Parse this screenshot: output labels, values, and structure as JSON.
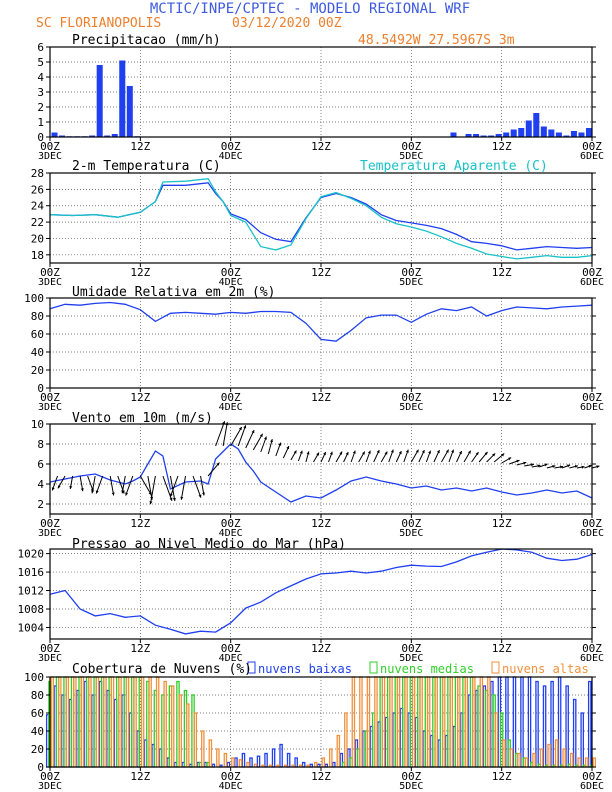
{
  "header": {
    "title": "MCTIC/INPE/CPTEC - MODELO REGIONAL WRF",
    "location": "SC FLORIANOPOLIS",
    "date": "03/12/2020 00Z",
    "coords": "48.5492W 27.5967S 3m"
  },
  "colors": {
    "blue": "#1f3ff0",
    "cyan": "#19c2c8",
    "green": "#2fcf27",
    "orange": "#f2913a",
    "title": "#3d5ae0",
    "subtitle": "#ee7f2d"
  },
  "x_axis": {
    "ticks": [
      0,
      12,
      24,
      36,
      48,
      60,
      72
    ],
    "tick_labels": [
      "00Z",
      "12Z",
      "00Z",
      "12Z",
      "00Z",
      "12Z",
      "00Z"
    ],
    "day_labels": [
      {
        "at": 0,
        "label": "3DEC"
      },
      {
        "at": 24,
        "label": "4DEC"
      },
      {
        "at": 48,
        "label": "5DEC"
      },
      {
        "at": 72,
        "label": "6DEC"
      }
    ],
    "range": [
      0,
      72
    ],
    "unit": "hours"
  },
  "chart_data": [
    {
      "id": "precip",
      "type": "bar",
      "title": "Precipitacao (mm/h)",
      "ylim": [
        0,
        6
      ],
      "yticks": [
        0,
        1,
        2,
        3,
        4,
        5,
        6
      ],
      "series": [
        {
          "color": "#1f3ff0",
          "x": [
            1,
            2,
            3,
            4,
            5,
            6,
            7,
            8,
            9,
            10,
            11,
            12,
            54,
            56,
            57,
            58,
            59,
            60,
            61,
            62,
            63,
            64,
            65,
            66,
            67,
            68,
            69,
            70,
            71,
            72
          ],
          "values": [
            0.3,
            0.1,
            0.05,
            0.05,
            0.05,
            0.1,
            4.8,
            0.1,
            0.2,
            5.1,
            3.4,
            0.05,
            0.3,
            0.2,
            0.2,
            0.1,
            0.1,
            0.2,
            0.3,
            0.5,
            0.6,
            1.1,
            1.6,
            0.7,
            0.5,
            0.3,
            0.1,
            0.4,
            0.3,
            0.6
          ]
        }
      ]
    },
    {
      "id": "temp",
      "type": "line",
      "title": "2-m Temperatura (C)",
      "legend_right": "Temperatura Aparente (C)",
      "ylim": [
        17,
        28
      ],
      "yticks": [
        18,
        20,
        22,
        24,
        26,
        28
      ],
      "series": [
        {
          "color": "#1f3ff0",
          "x": [
            0,
            3,
            6,
            9,
            12,
            14,
            15,
            18,
            21,
            22,
            23,
            24,
            26,
            28,
            30,
            32,
            34,
            36,
            38,
            40,
            42,
            44,
            46,
            48,
            50,
            52,
            54,
            56,
            58,
            60,
            62,
            64,
            66,
            68,
            70,
            72
          ],
          "values": [
            22.9,
            22.8,
            22.9,
            22.6,
            23.2,
            24.5,
            26.5,
            26.5,
            26.8,
            25.5,
            24.5,
            23.0,
            22.3,
            20.7,
            19.9,
            19.6,
            22.5,
            25.0,
            25.5,
            25.0,
            24.2,
            22.9,
            22.2,
            21.9,
            21.6,
            21.2,
            20.5,
            19.6,
            19.4,
            19.1,
            18.6,
            18.8,
            19.0,
            18.9,
            18.8,
            18.9
          ]
        },
        {
          "color": "#19c2c8",
          "x": [
            0,
            3,
            6,
            9,
            12,
            14,
            15,
            18,
            21,
            22,
            23,
            24,
            26,
            28,
            30,
            32,
            34,
            36,
            38,
            40,
            42,
            44,
            46,
            48,
            50,
            52,
            54,
            56,
            58,
            60,
            62,
            64,
            66,
            68,
            70,
            72
          ],
          "values": [
            22.9,
            22.8,
            22.9,
            22.6,
            23.2,
            24.5,
            26.9,
            27.0,
            27.3,
            25.7,
            24.5,
            22.8,
            22.0,
            19.0,
            18.6,
            19.2,
            22.4,
            25.1,
            25.6,
            24.9,
            24.0,
            22.6,
            21.8,
            21.4,
            20.9,
            20.2,
            19.4,
            18.8,
            18.1,
            17.8,
            17.5,
            17.7,
            17.9,
            17.7,
            17.7,
            17.9
          ]
        }
      ]
    },
    {
      "id": "humidity",
      "type": "line",
      "title": "Umidade Relativa em 2m (%)",
      "ylim": [
        0,
        100
      ],
      "yticks": [
        0,
        20,
        40,
        60,
        80,
        100
      ],
      "series": [
        {
          "color": "#1f3ff0",
          "x": [
            0,
            2,
            4,
            6,
            8,
            10,
            12,
            14,
            16,
            18,
            20,
            22,
            24,
            26,
            28,
            30,
            32,
            34,
            36,
            38,
            40,
            42,
            44,
            46,
            48,
            50,
            52,
            54,
            56,
            58,
            60,
            62,
            64,
            66,
            68,
            70,
            72
          ],
          "values": [
            88,
            93,
            92,
            94,
            95,
            93,
            87,
            74,
            83,
            84,
            83,
            82,
            84,
            83,
            85,
            85,
            84,
            72,
            54,
            52,
            64,
            78,
            81,
            81,
            73,
            82,
            88,
            86,
            90,
            80,
            86,
            90,
            89,
            88,
            90,
            91,
            92
          ]
        }
      ]
    },
    {
      "id": "wind",
      "type": "line",
      "title": "Vento em 10m (m/s)",
      "ylim": [
        1,
        10
      ],
      "yticks": [
        2,
        4,
        6,
        8,
        10
      ],
      "series": [
        {
          "color": "#1f3ff0",
          "x": [
            0,
            2,
            4,
            6,
            8,
            10,
            11,
            12,
            14,
            15,
            16,
            18,
            20,
            21,
            22,
            24,
            25,
            26,
            27,
            28,
            30,
            32,
            34,
            36,
            38,
            40,
            42,
            44,
            46,
            48,
            50,
            52,
            54,
            56,
            58,
            60,
            62,
            64,
            66,
            68,
            70,
            72
          ],
          "values": [
            4.2,
            4.5,
            4.8,
            5.0,
            4.4,
            4.0,
            4.3,
            4.7,
            7.3,
            6.8,
            3.5,
            4.2,
            4.3,
            4.0,
            6.5,
            8.0,
            7.5,
            6.2,
            5.3,
            4.2,
            3.2,
            2.2,
            2.8,
            2.6,
            3.4,
            4.3,
            4.7,
            4.3,
            4.0,
            3.6,
            3.8,
            3.4,
            3.6,
            3.3,
            3.6,
            3.2,
            2.9,
            3.1,
            3.4,
            3.1,
            3.3,
            2.6
          ]
        }
      ],
      "barbs": {
        "x": [
          1,
          2,
          3,
          4,
          5,
          6,
          7,
          8,
          9,
          10,
          11,
          12,
          13,
          14,
          15,
          16,
          17,
          18,
          19,
          20,
          21,
          22,
          23,
          24,
          25,
          26,
          27,
          28,
          29,
          30,
          31,
          32,
          33,
          34,
          35,
          36,
          37,
          38,
          39,
          40,
          41,
          42,
          43,
          44,
          45,
          46,
          47,
          48,
          49,
          50,
          51,
          52,
          53,
          54,
          55,
          56,
          57,
          58,
          59,
          60,
          61,
          62,
          63,
          64,
          65,
          66,
          67,
          68,
          69,
          70,
          71,
          72
        ],
        "base": [
          4.8,
          4.8,
          4.8,
          4.8,
          4.8,
          4.8,
          4.8,
          4.8,
          4.8,
          4.8,
          4.8,
          4.8,
          4.8,
          4.8,
          4.8,
          4.8,
          4.8,
          4.8,
          4.8,
          4.8,
          4.8,
          7.8,
          7.8,
          7.8,
          7.8,
          7.6,
          7.4,
          7.2,
          7.0,
          6.8,
          6.6,
          6.4,
          6.3,
          6.2,
          6.2,
          6.2,
          6.2,
          6.2,
          6.2,
          6.2,
          6.2,
          6.2,
          6.2,
          6.2,
          6.2,
          6.2,
          6.2,
          6.2,
          6.2,
          6.2,
          6.2,
          6.2,
          6.2,
          6.2,
          6.2,
          6.2,
          6.2,
          6.2,
          6.2,
          6.1,
          6.0,
          5.9,
          5.8,
          5.7,
          5.7,
          5.6,
          5.6,
          5.6,
          5.6,
          5.6,
          5.6,
          5.6
        ],
        "dir_deg": [
          200,
          210,
          190,
          170,
          160,
          190,
          200,
          170,
          160,
          190,
          200,
          150,
          170,
          190,
          160,
          170,
          200,
          190,
          160,
          170,
          40,
          20,
          10,
          30,
          20,
          25,
          30,
          20,
          15,
          20,
          25,
          30,
          20,
          15,
          30,
          25,
          20,
          30,
          25,
          20,
          30,
          20,
          25,
          30,
          20,
          25,
          20,
          30,
          25,
          20,
          25,
          30,
          20,
          25,
          30,
          35,
          40,
          45,
          50,
          60,
          70,
          75,
          80,
          80,
          70,
          75,
          80,
          70,
          75,
          80,
          70,
          75
        ],
        "len": [
          1.4,
          1.3,
          1.2,
          1.4,
          1.5,
          1.6,
          1.7,
          1.8,
          1.7,
          1.6,
          1.9,
          2.0,
          2.2,
          2.6,
          2.4,
          2.3,
          2.0,
          2.2,
          2.1,
          1.8,
          1.6,
          2.4,
          2.2,
          2.0,
          2.0,
          1.8,
          1.7,
          1.5,
          1.4,
          1.3,
          1.2,
          1.0,
          1.0,
          1.0,
          1.0,
          1.0,
          1.0,
          1.1,
          1.0,
          1.1,
          1.1,
          1.1,
          1.2,
          1.1,
          1.2,
          1.1,
          1.2,
          1.3,
          1.2,
          1.1,
          1.2,
          1.3,
          1.2,
          1.1,
          1.2,
          1.1,
          1.2,
          1.1,
          1.2,
          1.0,
          1.0,
          0.9,
          0.9,
          0.8,
          0.8,
          0.8,
          0.8,
          0.8,
          0.8,
          0.7,
          0.7,
          0.7
        ]
      }
    },
    {
      "id": "pressure",
      "type": "line",
      "title": "Pressao ao Nivel Medio do Mar (hPa)",
      "ylim": [
        1001.5,
        1021
      ],
      "yticks": [
        1004,
        1008,
        1012,
        1016,
        1020
      ],
      "series": [
        {
          "color": "#1f3ff0",
          "x": [
            0,
            2,
            4,
            6,
            8,
            10,
            12,
            14,
            16,
            18,
            20,
            22,
            24,
            26,
            28,
            30,
            32,
            34,
            36,
            38,
            40,
            42,
            44,
            46,
            48,
            50,
            52,
            54,
            56,
            58,
            60,
            62,
            64,
            66,
            68,
            70,
            72
          ],
          "values": [
            1011.2,
            1012,
            1008,
            1006.5,
            1007,
            1006.2,
            1006.5,
            1004.5,
            1003.6,
            1002.6,
            1003.2,
            1003,
            1005,
            1008.2,
            1009.5,
            1011.5,
            1013,
            1014.5,
            1015.6,
            1015.8,
            1016.2,
            1015.8,
            1016.2,
            1017,
            1017.5,
            1017.3,
            1017.2,
            1018.2,
            1019.5,
            1020.3,
            1021,
            1020.8,
            1020.3,
            1019,
            1018.5,
            1018.8,
            1019.8
          ]
        }
      ]
    },
    {
      "id": "clouds",
      "type": "bar",
      "title": "Cobertura de Nuvens (%)",
      "ylim": [
        0,
        100
      ],
      "yticks": [
        0,
        20,
        40,
        60,
        80,
        100
      ],
      "legend": [
        {
          "label": "nuvens baixas",
          "color": "#1f3ff0"
        },
        {
          "label": "nuvens medias",
          "color": "#2fcf27"
        },
        {
          "label": "nuvens altas",
          "color": "#f2913a"
        }
      ],
      "x": [
        0,
        1,
        2,
        3,
        4,
        5,
        6,
        7,
        8,
        9,
        10,
        11,
        12,
        13,
        14,
        15,
        16,
        17,
        18,
        19,
        20,
        21,
        22,
        23,
        24,
        25,
        26,
        27,
        28,
        29,
        30,
        31,
        32,
        33,
        34,
        35,
        36,
        37,
        38,
        39,
        40,
        41,
        42,
        43,
        44,
        45,
        46,
        47,
        48,
        49,
        50,
        51,
        52,
        53,
        54,
        55,
        56,
        57,
        58,
        59,
        60,
        61,
        62,
        63,
        64,
        65,
        66,
        67,
        68,
        69,
        70,
        71,
        72
      ],
      "series": [
        {
          "name": "nuvens baixas",
          "color": "#1f3ff0",
          "values": [
            58,
            90,
            80,
            75,
            85,
            95,
            80,
            95,
            85,
            75,
            80,
            60,
            40,
            30,
            25,
            20,
            10,
            5,
            5,
            3,
            5,
            5,
            3,
            2,
            5,
            10,
            15,
            10,
            12,
            15,
            20,
            25,
            15,
            10,
            5,
            3,
            3,
            3,
            5,
            15,
            20,
            30,
            40,
            45,
            50,
            55,
            60,
            65,
            60,
            55,
            40,
            35,
            30,
            35,
            45,
            60,
            80,
            85,
            90,
            95,
            100,
            100,
            100,
            100,
            100,
            95,
            90,
            95,
            100,
            90,
            75,
            60,
            95
          ]
        },
        {
          "name": "nuvens medias",
          "color": "#2fcf27",
          "values": [
            95,
            100,
            100,
            100,
            100,
            100,
            100,
            100,
            100,
            100,
            100,
            100,
            100,
            95,
            85,
            80,
            90,
            95,
            85,
            80,
            5,
            5,
            0,
            0,
            0,
            0,
            0,
            0,
            0,
            0,
            0,
            0,
            0,
            0,
            0,
            0,
            0,
            0,
            0,
            5,
            10,
            20,
            40,
            60,
            100,
            100,
            100,
            100,
            100,
            100,
            100,
            100,
            100,
            100,
            100,
            100,
            100,
            90,
            85,
            80,
            60,
            30,
            15,
            10,
            5,
            3,
            2,
            2,
            2,
            3,
            2,
            2,
            2
          ]
        },
        {
          "name": "nuvens altas",
          "color": "#f2913a",
          "values": [
            100,
            100,
            100,
            100,
            100,
            100,
            100,
            100,
            100,
            100,
            100,
            100,
            100,
            100,
            100,
            95,
            90,
            80,
            70,
            60,
            40,
            30,
            20,
            15,
            10,
            8,
            5,
            3,
            2,
            2,
            2,
            2,
            2,
            2,
            2,
            5,
            10,
            20,
            35,
            60,
            100,
            100,
            100,
            100,
            100,
            100,
            100,
            100,
            100,
            100,
            100,
            100,
            100,
            100,
            100,
            100,
            100,
            100,
            100,
            60,
            30,
            20,
            15,
            10,
            15,
            20,
            25,
            30,
            20,
            15,
            10,
            10,
            10
          ]
        }
      ]
    }
  ]
}
